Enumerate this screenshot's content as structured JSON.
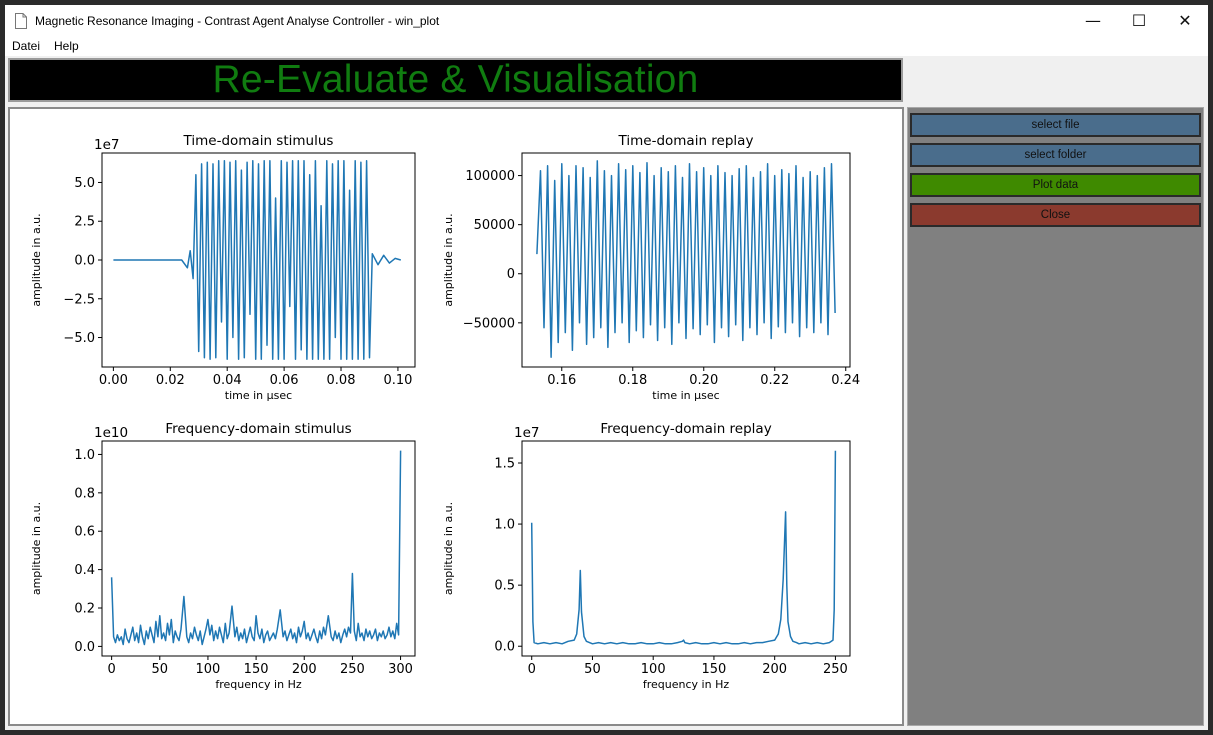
{
  "window": {
    "title": "Magnetic Resonance Imaging - Contrast Agent Analyse Controller - win_plot",
    "controls": {
      "minimize": "—",
      "maximize": "☐",
      "close": "✕"
    }
  },
  "menu": {
    "items": [
      "Datei",
      "Help"
    ]
  },
  "banner": {
    "title": "Re-Evaluate & Visualisation",
    "color": "#107c10"
  },
  "side_panel": {
    "buttons": [
      {
        "label": "select file",
        "color": "#4a6d8c"
      },
      {
        "label": "select folder",
        "color": "#4a6d8c"
      },
      {
        "label": "Plot data",
        "color": "#3f8a00"
      },
      {
        "label": "Close",
        "color": "#8b3a2e"
      }
    ]
  },
  "plot_color": "#1f77b4",
  "chart_data": [
    {
      "type": "line",
      "title": "Time-domain stimulus",
      "xlabel": "time in µsec",
      "ylabel": "amplitude in a.u.",
      "offset_text": "1e7",
      "xlim": [
        -0.004,
        0.106
      ],
      "ylim": [
        -6.9,
        6.9
      ],
      "xticks": [
        0.0,
        0.02,
        0.04,
        0.06,
        0.08,
        0.1
      ],
      "xtick_labels": [
        "0.00",
        "0.02",
        "0.04",
        "0.06",
        "0.08",
        "0.10"
      ],
      "yticks": [
        -5.0,
        -2.5,
        0.0,
        2.5,
        5.0
      ],
      "ytick_labels": [
        "−5.0",
        "−2.5",
        "0.0",
        "2.5",
        "5.0"
      ],
      "x": [
        0.0,
        0.024,
        0.026,
        0.027,
        0.028,
        0.029,
        0.03,
        0.031,
        0.032,
        0.033,
        0.034,
        0.035,
        0.036,
        0.037,
        0.038,
        0.039,
        0.04,
        0.041,
        0.042,
        0.043,
        0.044,
        0.045,
        0.046,
        0.047,
        0.048,
        0.049,
        0.05,
        0.051,
        0.052,
        0.053,
        0.054,
        0.055,
        0.056,
        0.057,
        0.058,
        0.059,
        0.06,
        0.061,
        0.062,
        0.063,
        0.064,
        0.065,
        0.066,
        0.067,
        0.068,
        0.069,
        0.07,
        0.071,
        0.072,
        0.073,
        0.074,
        0.075,
        0.076,
        0.077,
        0.078,
        0.079,
        0.08,
        0.081,
        0.082,
        0.083,
        0.084,
        0.085,
        0.086,
        0.087,
        0.088,
        0.089,
        0.09,
        0.091,
        0.093,
        0.095,
        0.097,
        0.099,
        0.101
      ],
      "y": [
        0.0,
        0.0,
        -0.5,
        0.6,
        -1.2,
        5.5,
        -5.9,
        6.2,
        -6.3,
        6.3,
        -6.4,
        6.2,
        -6.3,
        6.4,
        -4.0,
        6.4,
        -6.4,
        6.3,
        -5.0,
        6.4,
        -6.4,
        5.8,
        -6.3,
        6.3,
        -3.5,
        6.4,
        -6.4,
        6.2,
        -6.4,
        6.4,
        -5.5,
        6.4,
        -6.4,
        4.0,
        -6.4,
        6.4,
        -6.4,
        6.3,
        -3.0,
        6.4,
        -6.4,
        6.4,
        -5.8,
        6.4,
        -6.4,
        5.5,
        -6.4,
        6.4,
        -6.4,
        3.5,
        -6.4,
        6.4,
        -6.4,
        6.2,
        -5.0,
        6.4,
        -6.4,
        6.4,
        -6.4,
        4.5,
        -6.4,
        6.4,
        -6.4,
        6.3,
        -6.4,
        6.4,
        -6.3,
        0.4,
        -0.3,
        0.3,
        -0.2,
        0.1,
        0.0
      ]
    },
    {
      "type": "line",
      "title": "Time-domain replay",
      "xlabel": "time in µsec",
      "ylabel": "amplitude in a.u.",
      "offset_text": "",
      "xlim": [
        0.1488,
        0.2412
      ],
      "ylim": [
        -95000,
        123000
      ],
      "xticks": [
        0.16,
        0.18,
        0.2,
        0.22,
        0.24
      ],
      "xtick_labels": [
        "0.16",
        "0.18",
        "0.20",
        "0.22",
        "0.24"
      ],
      "yticks": [
        -50000,
        0,
        50000,
        100000
      ],
      "ytick_labels": [
        "−50000",
        "0",
        "50000",
        "100000"
      ],
      "x": [
        0.153,
        0.154,
        0.155,
        0.156,
        0.157,
        0.158,
        0.159,
        0.16,
        0.161,
        0.162,
        0.163,
        0.164,
        0.165,
        0.166,
        0.167,
        0.168,
        0.169,
        0.17,
        0.171,
        0.172,
        0.173,
        0.174,
        0.175,
        0.176,
        0.177,
        0.178,
        0.179,
        0.18,
        0.181,
        0.182,
        0.183,
        0.184,
        0.185,
        0.186,
        0.187,
        0.188,
        0.189,
        0.19,
        0.191,
        0.192,
        0.193,
        0.194,
        0.195,
        0.196,
        0.197,
        0.198,
        0.199,
        0.2,
        0.201,
        0.202,
        0.203,
        0.204,
        0.205,
        0.206,
        0.207,
        0.208,
        0.209,
        0.21,
        0.211,
        0.212,
        0.213,
        0.214,
        0.215,
        0.216,
        0.217,
        0.218,
        0.219,
        0.22,
        0.221,
        0.222,
        0.223,
        0.224,
        0.225,
        0.226,
        0.227,
        0.228,
        0.229,
        0.23,
        0.231,
        0.232,
        0.233,
        0.234,
        0.235,
        0.236,
        0.237
      ],
      "y": [
        20000,
        105000,
        -55000,
        110000,
        -85000,
        95000,
        -70000,
        112000,
        -60000,
        100000,
        -78000,
        110000,
        -50000,
        108000,
        -72000,
        98000,
        -65000,
        115000,
        -55000,
        105000,
        -75000,
        100000,
        -60000,
        112000,
        -50000,
        106000,
        -70000,
        110000,
        -58000,
        103000,
        -65000,
        113000,
        -52000,
        100000,
        -68000,
        108000,
        -55000,
        104000,
        -72000,
        110000,
        -50000,
        98000,
        -66000,
        112000,
        -56000,
        104000,
        -62000,
        108000,
        -52000,
        100000,
        -70000,
        110000,
        -55000,
        103000,
        -64000,
        100000,
        -52000,
        107000,
        -68000,
        110000,
        -55000,
        98000,
        -62000,
        104000,
        -50000,
        112000,
        -66000,
        100000,
        -54000,
        106000,
        -60000,
        102000,
        -50000,
        110000,
        -64000,
        98000,
        -55000,
        104000,
        -60000,
        100000,
        -50000,
        108000,
        -62000,
        112000,
        -40000
      ]
    },
    {
      "type": "line",
      "title": "Frequency-domain stimulus",
      "xlabel": "frequency in Hz",
      "ylabel": "amplitude in a.u.",
      "offset_text": "1e10",
      "xlim": [
        -10,
        315
      ],
      "ylim": [
        -0.05,
        1.07
      ],
      "xticks": [
        0,
        50,
        100,
        150,
        200,
        250,
        300
      ],
      "xtick_labels": [
        "0",
        "50",
        "100",
        "150",
        "200",
        "250",
        "300"
      ],
      "yticks": [
        0.0,
        0.2,
        0.4,
        0.6,
        0.8,
        1.0
      ],
      "ytick_labels": [
        "0.0",
        "0.2",
        "0.4",
        "0.6",
        "0.8",
        "1.0"
      ],
      "x": [
        0,
        2,
        4,
        6,
        8,
        10,
        12,
        14,
        16,
        18,
        20,
        22,
        24,
        26,
        28,
        30,
        32,
        34,
        36,
        38,
        40,
        42,
        44,
        46,
        48,
        50,
        52,
        54,
        56,
        58,
        60,
        62,
        64,
        66,
        68,
        70,
        72,
        75,
        78,
        80,
        82,
        84,
        86,
        88,
        90,
        92,
        94,
        96,
        98,
        100,
        102,
        104,
        106,
        108,
        110,
        112,
        114,
        116,
        118,
        120,
        122,
        125,
        128,
        130,
        132,
        134,
        136,
        138,
        140,
        142,
        144,
        146,
        148,
        150,
        152,
        154,
        156,
        158,
        160,
        162,
        164,
        166,
        168,
        170,
        172,
        175,
        178,
        180,
        182,
        184,
        186,
        188,
        190,
        192,
        194,
        196,
        198,
        200,
        202,
        204,
        206,
        208,
        210,
        212,
        214,
        216,
        218,
        220,
        222,
        225,
        228,
        230,
        232,
        234,
        236,
        238,
        240,
        242,
        244,
        246,
        248,
        250,
        252,
        254,
        256,
        258,
        260,
        262,
        264,
        266,
        268,
        270,
        272,
        274,
        276,
        278,
        280,
        282,
        284,
        286,
        288,
        290,
        292,
        294,
        296,
        298,
        300
      ],
      "y": [
        0.36,
        0.05,
        0.02,
        0.06,
        0.03,
        0.05,
        0.01,
        0.09,
        0.04,
        0.02,
        0.06,
        0.1,
        0.03,
        0.07,
        0.02,
        0.11,
        0.05,
        0.01,
        0.08,
        0.04,
        0.1,
        0.06,
        0.02,
        0.13,
        0.05,
        0.16,
        0.04,
        0.07,
        0.03,
        0.12,
        0.06,
        0.14,
        0.02,
        0.08,
        0.05,
        0.03,
        0.09,
        0.26,
        0.05,
        0.02,
        0.07,
        0.04,
        0.1,
        0.06,
        0.03,
        0.08,
        0.01,
        0.05,
        0.09,
        0.14,
        0.06,
        0.11,
        0.03,
        0.08,
        0.04,
        0.1,
        0.06,
        0.02,
        0.12,
        0.04,
        0.07,
        0.21,
        0.05,
        0.1,
        0.03,
        0.07,
        0.04,
        0.09,
        0.02,
        0.06,
        0.1,
        0.05,
        0.03,
        0.16,
        0.07,
        0.04,
        0.09,
        0.02,
        0.06,
        0.08,
        0.03,
        0.05,
        0.07,
        0.04,
        0.09,
        0.19,
        0.05,
        0.08,
        0.03,
        0.06,
        0.09,
        0.04,
        0.07,
        0.02,
        0.1,
        0.05,
        0.08,
        0.13,
        0.04,
        0.07,
        0.03,
        0.06,
        0.09,
        0.05,
        0.02,
        0.08,
        0.04,
        0.1,
        0.06,
        0.16,
        0.05,
        0.03,
        0.08,
        0.04,
        0.07,
        0.02,
        0.06,
        0.09,
        0.05,
        0.1,
        0.07,
        0.38,
        0.08,
        0.03,
        0.12,
        0.05,
        0.07,
        0.03,
        0.09,
        0.05,
        0.08,
        0.04,
        0.06,
        0.09,
        0.03,
        0.07,
        0.05,
        0.08,
        0.04,
        0.06,
        0.1,
        0.05,
        0.08,
        0.04,
        0.12,
        0.06,
        1.02
      ]
    },
    {
      "type": "line",
      "title": "Frequency-domain replay",
      "xlabel": "frequency in Hz",
      "ylabel": "amplitude in a.u.",
      "offset_text": "1e7",
      "xlim": [
        -8,
        262
      ],
      "ylim": [
        -0.08,
        1.68
      ],
      "xticks": [
        0,
        50,
        100,
        150,
        200,
        250
      ],
      "xtick_labels": [
        "0",
        "50",
        "100",
        "150",
        "200",
        "250"
      ],
      "yticks": [
        0.0,
        0.5,
        1.0,
        1.5
      ],
      "ytick_labels": [
        "0.0",
        "0.5",
        "1.0",
        "1.5"
      ],
      "x": [
        0,
        1,
        2,
        5,
        10,
        15,
        20,
        25,
        30,
        35,
        37,
        39,
        40,
        41,
        43,
        45,
        50,
        55,
        60,
        65,
        70,
        75,
        80,
        85,
        90,
        95,
        100,
        105,
        110,
        115,
        120,
        124,
        125,
        126,
        130,
        135,
        140,
        145,
        150,
        155,
        160,
        165,
        170,
        175,
        180,
        185,
        190,
        195,
        200,
        203,
        205,
        207,
        209,
        210,
        211,
        213,
        215,
        218,
        220,
        225,
        230,
        235,
        240,
        245,
        248,
        249,
        250
      ],
      "y": [
        1.01,
        0.2,
        0.03,
        0.02,
        0.03,
        0.02,
        0.03,
        0.02,
        0.04,
        0.05,
        0.1,
        0.3,
        0.62,
        0.28,
        0.08,
        0.04,
        0.02,
        0.03,
        0.02,
        0.03,
        0.02,
        0.03,
        0.02,
        0.02,
        0.03,
        0.02,
        0.02,
        0.03,
        0.02,
        0.02,
        0.03,
        0.04,
        0.05,
        0.03,
        0.02,
        0.03,
        0.02,
        0.02,
        0.03,
        0.02,
        0.03,
        0.02,
        0.02,
        0.03,
        0.02,
        0.03,
        0.03,
        0.04,
        0.05,
        0.1,
        0.22,
        0.55,
        1.1,
        0.5,
        0.2,
        0.08,
        0.04,
        0.03,
        0.02,
        0.03,
        0.02,
        0.03,
        0.02,
        0.03,
        0.05,
        0.3,
        1.6
      ]
    }
  ]
}
